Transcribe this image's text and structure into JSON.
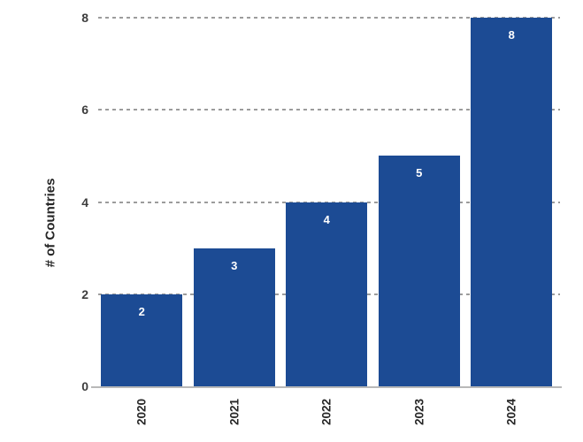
{
  "chart_data": {
    "type": "bar",
    "categories": [
      "2020",
      "2021",
      "2022",
      "2023",
      "2024"
    ],
    "values": [
      2,
      3,
      4,
      5,
      8
    ],
    "title": "",
    "xlabel": "",
    "ylabel": "# of Countries",
    "ylim": [
      0,
      8
    ],
    "yticks": [
      0,
      2,
      4,
      6,
      8
    ],
    "grid": "horizontal-dashed",
    "legend": "none",
    "value_labels_shown": true,
    "colors": {
      "bar": "#1C4B94",
      "bar_value_label": "#FFFFFF",
      "gridline": "#9C9C9C",
      "y_tick_label": "#3D3D3D",
      "x_tick_label": "#262626",
      "axis_title": "#262626",
      "axis_line": "#B8B8B8",
      "background": "#FFFFFF"
    }
  }
}
